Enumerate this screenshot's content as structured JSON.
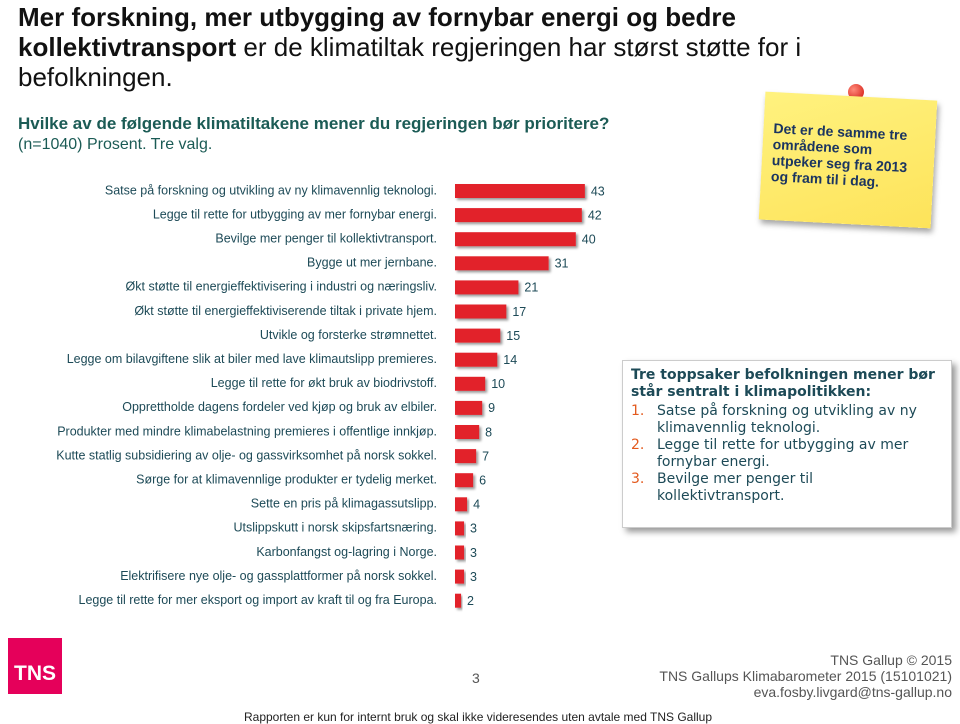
{
  "header": {
    "title_bold": "Mer forskning, mer utbygging av fornybar energi og bedre kollektivtransport",
    "title_rest": "er de klimatiltak regjeringen har størst støtte for i befolkningen.",
    "question": "Hvilke av de følgende klimatiltakene mener du regjeringen bør prioritere?",
    "sample": "(n=1040) Prosent. Tre valg."
  },
  "chart_data": {
    "type": "bar",
    "orientation": "horizontal",
    "color": "#e2222c",
    "categories": [
      "Satse på forskning og utvikling av ny klimavennlig teknologi.",
      "Legge til rette for utbygging av mer fornybar energi.",
      "Bevilge mer penger til kollektivtransport.",
      "Bygge ut mer jernbane.",
      "Økt støtte til energieffektivisering i industri og næringsliv.",
      "Økt støtte til energieffektiviserende tiltak i private hjem.",
      "Utvikle og forsterke strømnettet.",
      "Legge om bilavgiftene slik at biler med lave klimautslipp premieres.",
      "Legge til rette for økt bruk av biodrivstoff.",
      "Opprettholde dagens fordeler ved kjøp og bruk av elbiler.",
      "Produkter med mindre klimabelastning premieres i offentlige innkjøp.",
      "Kutte statlig subsidiering av olje- og gassvirksomhet på norsk sokkel.",
      "Sørge for at klimavennlige produkter er tydelig merket.",
      "Sette en pris på klimagassutslipp.",
      "Utslippskutt i norsk skipsfartsnæring.",
      "Karbonfangst og-lagring i Norge.",
      "Elektrifisere nye olje- og gassplattformer på norsk sokkel.",
      "Legge til rette for mer eksport og import av kraft til og fra Europa."
    ],
    "values": [
      43,
      42,
      40,
      31,
      21,
      17,
      15,
      14,
      10,
      9,
      8,
      7,
      6,
      4,
      3,
      3,
      3,
      2
    ]
  },
  "note": "Det er de samme tre områdene som utpeker seg fra 2013 og fram til i dag.",
  "callout": {
    "title": "Tre toppsaker befolkningen mener bør står sentralt i klimapolitikken:",
    "items": [
      "Satse på forskning og utvikling av ny klimavennlig teknologi.",
      "Legge til rette for utbygging av mer fornybar energi.",
      "Bevilge mer penger til kollektivtransport."
    ],
    "markers": [
      "1.",
      "2.",
      "3."
    ]
  },
  "footer": {
    "logo": "TNS",
    "page": "3",
    "copyright": "TNS Gallup © 2015",
    "report": "TNS Gallups Klimabarometer 2015 (15101021)",
    "email": "eva.fosby.livgard@tns-gallup.no",
    "disclaimer": "Rapporten er kun for internt bruk og skal ikke videresendes uten avtale med TNS Gallup"
  }
}
